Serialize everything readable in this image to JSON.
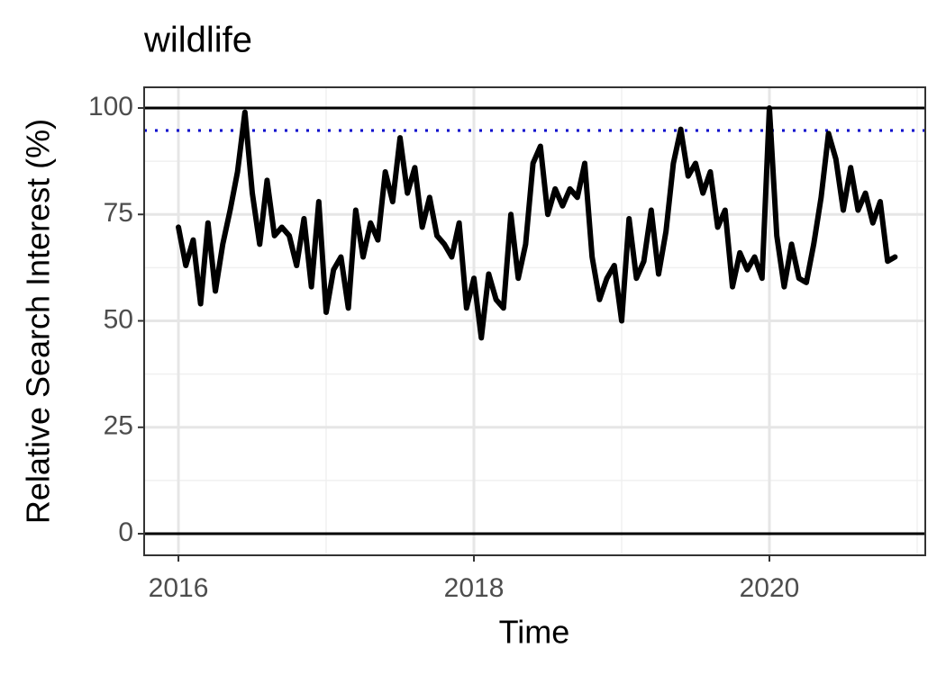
{
  "chart_data": {
    "type": "line",
    "title": "wildlife",
    "x_label": "Time",
    "y_label": "Relative Search Interest (%)",
    "x": [
      2016.0,
      2016.05,
      2016.1,
      2016.15,
      2016.2,
      2016.25,
      2016.3,
      2016.35,
      2016.4,
      2016.45,
      2016.5,
      2016.55,
      2016.6,
      2016.65,
      2016.7,
      2016.75,
      2016.8,
      2016.85,
      2016.9,
      2016.95,
      2017.0,
      2017.05,
      2017.1,
      2017.15,
      2017.2,
      2017.25,
      2017.3,
      2017.35,
      2017.4,
      2017.45,
      2017.5,
      2017.55,
      2017.6,
      2017.65,
      2017.7,
      2017.75,
      2017.8,
      2017.85,
      2017.9,
      2017.95,
      2018.0,
      2018.05,
      2018.1,
      2018.15,
      2018.2,
      2018.25,
      2018.3,
      2018.35,
      2018.4,
      2018.45,
      2018.5,
      2018.55,
      2018.6,
      2018.65,
      2018.7,
      2018.75,
      2018.8,
      2018.85,
      2018.9,
      2018.95,
      2019.0,
      2019.05,
      2019.1,
      2019.15,
      2019.2,
      2019.25,
      2019.3,
      2019.35,
      2019.4,
      2019.45,
      2019.5,
      2019.55,
      2019.6,
      2019.65,
      2019.7,
      2019.75,
      2019.8,
      2019.85,
      2019.9,
      2019.95,
      2020.0,
      2020.05,
      2020.1,
      2020.15,
      2020.2,
      2020.25,
      2020.3,
      2020.35,
      2020.4,
      2020.45,
      2020.5,
      2020.55,
      2020.6,
      2020.65,
      2020.7,
      2020.75,
      2020.8,
      2020.85
    ],
    "values": [
      72,
      63,
      69,
      54,
      73,
      57,
      68,
      76,
      85,
      99,
      80,
      68,
      83,
      70,
      72,
      70,
      63,
      74,
      58,
      78,
      52,
      62,
      65,
      53,
      76,
      65,
      73,
      69,
      85,
      78,
      93,
      80,
      86,
      72,
      79,
      70,
      68,
      65,
      73,
      53,
      60,
      46,
      61,
      55,
      53,
      75,
      60,
      68,
      87,
      91,
      75,
      81,
      77,
      81,
      79,
      87,
      65,
      55,
      60,
      63,
      50,
      74,
      60,
      64,
      76,
      61,
      71,
      87,
      95,
      84,
      87,
      80,
      85,
      72,
      76,
      58,
      66,
      62,
      65,
      60,
      100,
      70,
      58,
      68,
      60,
      59,
      68,
      79,
      94,
      88,
      76,
      86,
      76,
      80,
      73,
      78,
      64,
      65
    ],
    "color": "#000000",
    "xlim": [
      2015.768,
      2021.055
    ],
    "xticks": [
      2016,
      2018,
      2020
    ],
    "xminor": [
      2017,
      2019,
      2021
    ],
    "ylim": [
      -5.07,
      104.86
    ],
    "yticks": [
      0,
      25,
      50,
      75,
      100
    ],
    "yminor": [
      12.5,
      37.5,
      62.5,
      87.5
    ],
    "grid": true,
    "hlines": [
      {
        "value": 0,
        "color": "#000000",
        "style": "solid"
      },
      {
        "value": 100,
        "color": "#000000",
        "style": "solid"
      },
      {
        "value": 94.7,
        "color": "#0000cc",
        "style": "dotted"
      }
    ]
  }
}
